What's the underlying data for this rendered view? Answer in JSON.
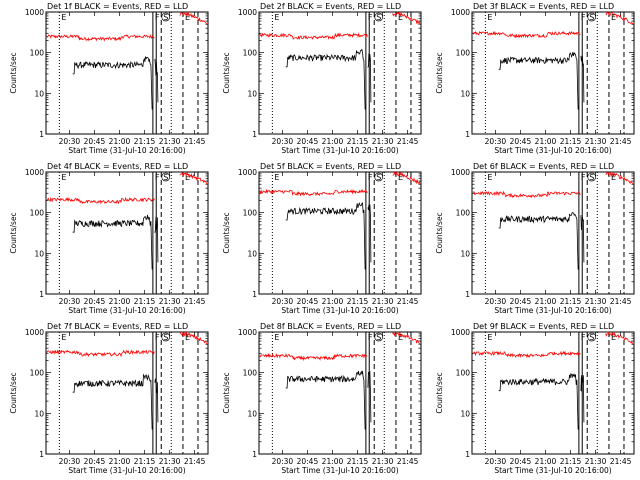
{
  "chart_data": {
    "type": "line",
    "xtick_labels": [
      "20:30",
      "20:45",
      "21:00",
      "21:15",
      "21:30",
      "21:45"
    ],
    "xlabel": "Start Time (31-Jul-10 20:16:00)",
    "ylabel": "Counts/sec",
    "yscale": "log",
    "ylim": [
      1,
      1000
    ],
    "ytick_labels": [
      "1",
      "10",
      "100",
      "1000"
    ],
    "xlim_minutes_after_start": [
      0,
      97
    ],
    "vertical_markers": [
      {
        "minutes": 8,
        "style": "dotted",
        "label": "E"
      },
      {
        "minutes": 64,
        "style": "solid",
        "label": "F"
      },
      {
        "minutes": 66,
        "style": "solid",
        "label": ""
      },
      {
        "minutes": 69,
        "style": "dashed",
        "label": "S"
      },
      {
        "minutes": 75,
        "style": "dotted",
        "label": ""
      },
      {
        "minutes": 82,
        "style": "dashed",
        "label": "E"
      },
      {
        "minutes": 91,
        "style": "dashed",
        "label": ""
      }
    ],
    "colors": {
      "events": "#000000",
      "lld": "#ff0000",
      "markers": "#000000"
    },
    "panels": [
      {
        "title": "Det 1f BLACK = Events, RED = LLD",
        "red_level": 250,
        "black_level": 50,
        "black_start": 16
      },
      {
        "title": "Det 2f BLACK = Events, RED = LLD",
        "red_level": 270,
        "black_level": 75,
        "black_start": 16
      },
      {
        "title": "Det 3f BLACK = Events, RED = LLD",
        "red_level": 300,
        "black_level": 65,
        "black_start": 16
      },
      {
        "title": "Det 4f BLACK = Events, RED = LLD",
        "red_level": 210,
        "black_level": 55,
        "black_start": 16
      },
      {
        "title": "Det 5f BLACK = Events, RED = LLD",
        "red_level": 330,
        "black_level": 110,
        "black_start": 16
      },
      {
        "title": "Det 6f BLACK = Events, RED = LLD",
        "red_level": 300,
        "black_level": 70,
        "black_start": 16
      },
      {
        "title": "Det 7f BLACK = Events, RED = LLD",
        "red_level": 320,
        "black_level": 55,
        "black_start": 16
      },
      {
        "title": "Det 8f BLACK = Events, RED = LLD",
        "red_level": 260,
        "black_level": 70,
        "black_start": 16
      },
      {
        "title": "Det 9f BLACK = Events, RED = LLD",
        "red_level": 300,
        "black_level": 60,
        "black_start": 16
      }
    ]
  }
}
